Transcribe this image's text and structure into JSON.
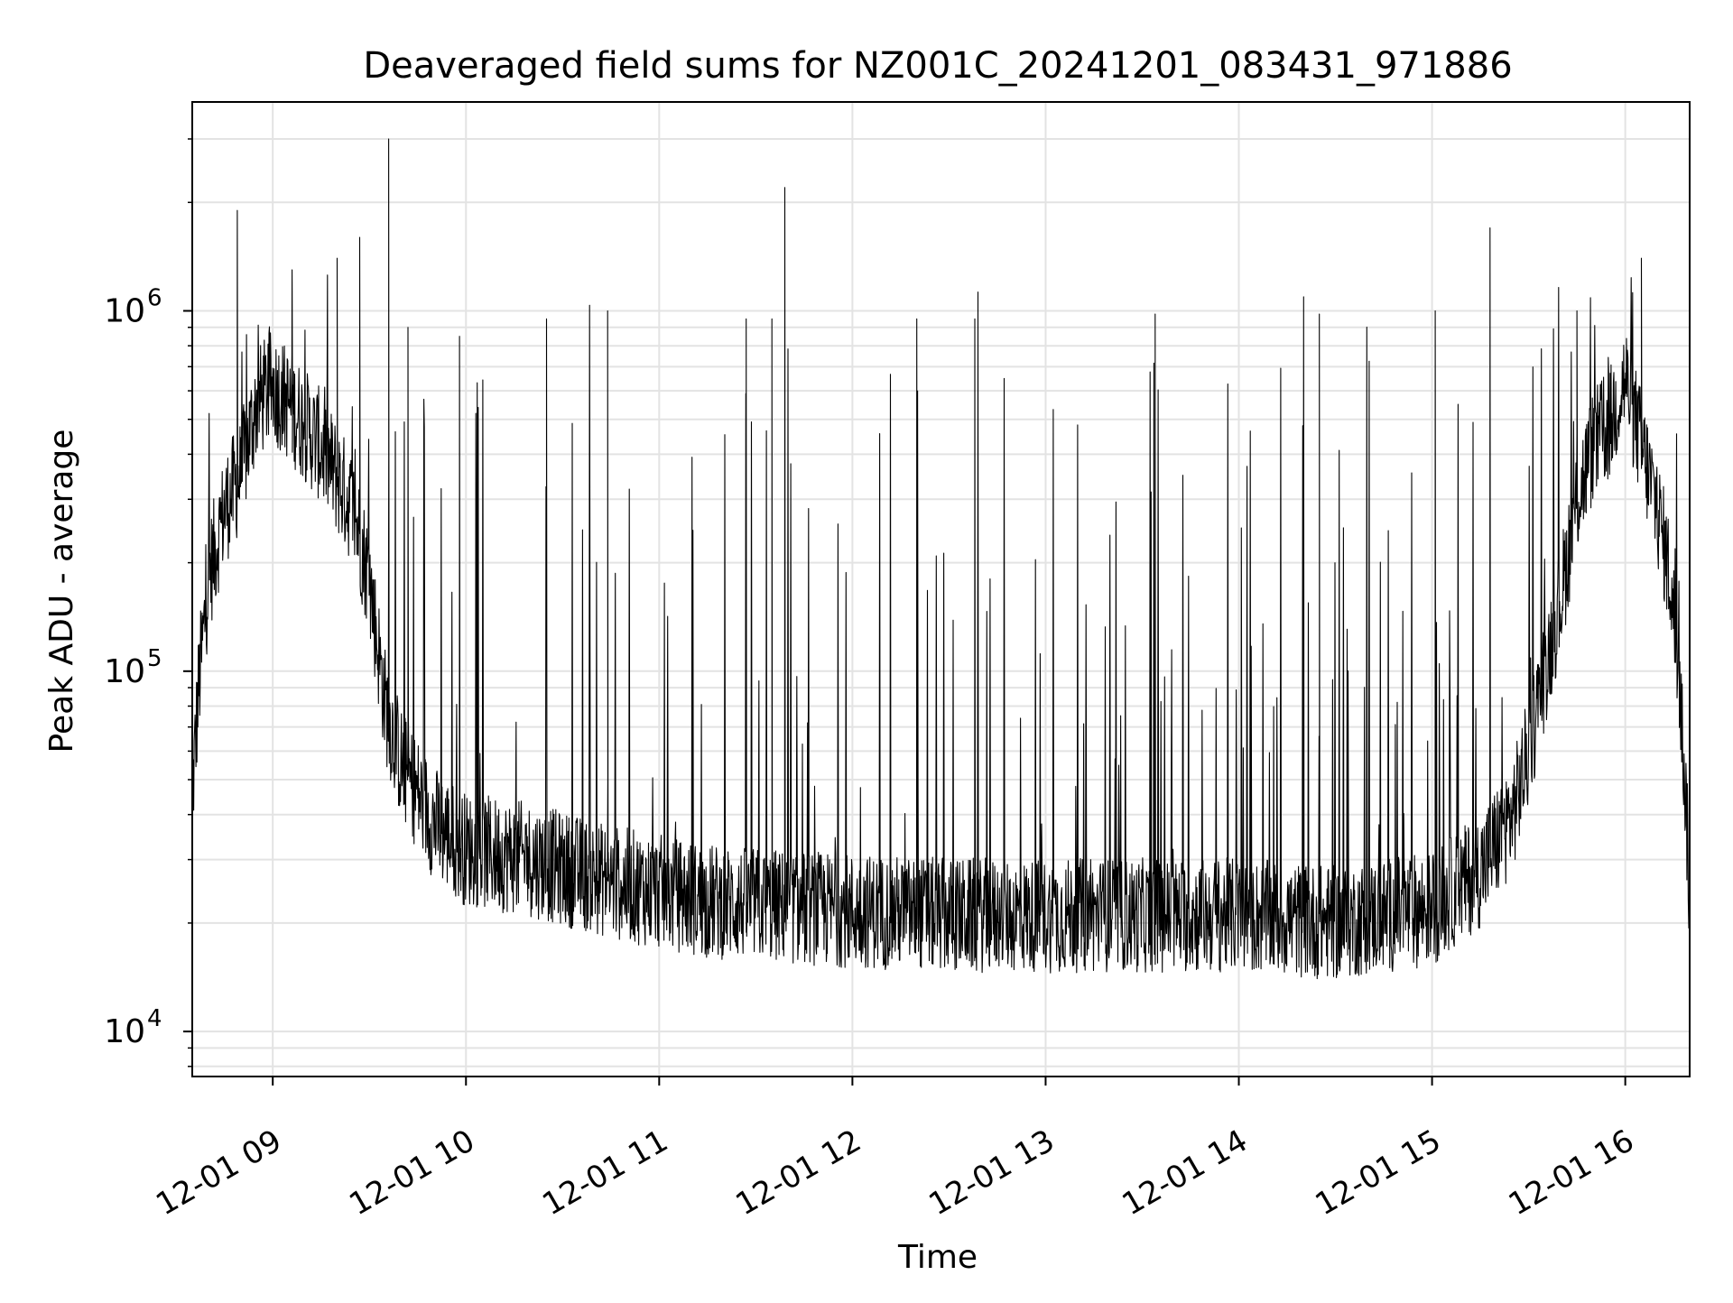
{
  "chart_data": {
    "type": "line",
    "title": "Deaveraged field sums for NZ001C_20241201_083431_971886",
    "xlabel": "Time",
    "ylabel": "Peak ADU - average",
    "x_range": [
      "2024-12-01T08:35:00",
      "2024-12-01T16:20:00"
    ],
    "y_range": [
      7500,
      3800000
    ],
    "y_scale": "log",
    "grid": true,
    "legend": "none",
    "line_color": "#000000",
    "x_ticks": [
      {
        "label": "12-01 09",
        "time": "2024-12-01T09:00:00"
      },
      {
        "label": "12-01 10",
        "time": "2024-12-01T10:00:00"
      },
      {
        "label": "12-01 11",
        "time": "2024-12-01T11:00:00"
      },
      {
        "label": "12-01 12",
        "time": "2024-12-01T12:00:00"
      },
      {
        "label": "12-01 13",
        "time": "2024-12-01T13:00:00"
      },
      {
        "label": "12-01 14",
        "time": "2024-12-01T14:00:00"
      },
      {
        "label": "12-01 15",
        "time": "2024-12-01T15:00:00"
      },
      {
        "label": "12-01 16",
        "time": "2024-12-01T16:00:00"
      }
    ],
    "y_ticks": [
      {
        "base": "10",
        "exp": "4",
        "value": 10000
      },
      {
        "base": "10",
        "exp": "5",
        "value": 100000
      },
      {
        "base": "10",
        "exp": "6",
        "value": 1000000
      }
    ],
    "series": [
      {
        "baseline": [
          {
            "x": "2024-12-01T08:35:00",
            "y": 45000
          },
          {
            "x": "2024-12-01T08:37:00",
            "y": 90000
          },
          {
            "x": "2024-12-01T08:40:00",
            "y": 180000
          },
          {
            "x": "2024-12-01T08:45:00",
            "y": 280000
          },
          {
            "x": "2024-12-01T08:50:00",
            "y": 350000
          },
          {
            "x": "2024-12-01T08:55:00",
            "y": 550000
          },
          {
            "x": "2024-12-01T09:00:00",
            "y": 620000
          },
          {
            "x": "2024-12-01T09:05:00",
            "y": 550000
          },
          {
            "x": "2024-12-01T09:15:00",
            "y": 420000
          },
          {
            "x": "2024-12-01T09:25:00",
            "y": 280000
          },
          {
            "x": "2024-12-01T09:30:00",
            "y": 180000
          },
          {
            "x": "2024-12-01T09:35:00",
            "y": 80000
          },
          {
            "x": "2024-12-01T09:40:00",
            "y": 55000
          },
          {
            "x": "2024-12-01T09:50:00",
            "y": 38000
          },
          {
            "x": "2024-12-01T10:00:00",
            "y": 32000
          },
          {
            "x": "2024-12-01T10:20:00",
            "y": 30000
          },
          {
            "x": "2024-12-01T10:45:00",
            "y": 26000
          },
          {
            "x": "2024-12-01T11:15:00",
            "y": 23000
          },
          {
            "x": "2024-12-01T11:45:00",
            "y": 22000
          },
          {
            "x": "2024-12-01T12:30:00",
            "y": 21000
          },
          {
            "x": "2024-12-01T13:15:00",
            "y": 21000
          },
          {
            "x": "2024-12-01T14:00:00",
            "y": 21000
          },
          {
            "x": "2024-12-01T14:30:00",
            "y": 20000
          },
          {
            "x": "2024-12-01T15:00:00",
            "y": 22000
          },
          {
            "x": "2024-12-01T15:15:00",
            "y": 28000
          },
          {
            "x": "2024-12-01T15:25:00",
            "y": 40000
          },
          {
            "x": "2024-12-01T15:30:00",
            "y": 60000
          },
          {
            "x": "2024-12-01T15:35:00",
            "y": 100000
          },
          {
            "x": "2024-12-01T15:40:00",
            "y": 160000
          },
          {
            "x": "2024-12-01T15:45:00",
            "y": 300000
          },
          {
            "x": "2024-12-01T15:50:00",
            "y": 420000
          },
          {
            "x": "2024-12-01T15:55:00",
            "y": 480000
          },
          {
            "x": "2024-12-01T16:00:00",
            "y": 650000
          },
          {
            "x": "2024-12-01T16:05:00",
            "y": 420000
          },
          {
            "x": "2024-12-01T16:10:00",
            "y": 280000
          },
          {
            "x": "2024-12-01T16:14:00",
            "y": 180000
          },
          {
            "x": "2024-12-01T16:17:00",
            "y": 90000
          },
          {
            "x": "2024-12-01T16:19:00",
            "y": 40000
          },
          {
            "x": "2024-12-01T16:20:00",
            "y": 22000
          }
        ],
        "spikes": [
          {
            "x": "2024-12-01T08:49:00",
            "y": 1900000
          },
          {
            "x": "2024-12-01T09:06:00",
            "y": 1300000
          },
          {
            "x": "2024-12-01T09:20:00",
            "y": 1400000
          },
          {
            "x": "2024-12-01T09:27:00",
            "y": 1600000
          },
          {
            "x": "2024-12-01T09:36:00",
            "y": 3000000
          },
          {
            "x": "2024-12-01T09:42:00",
            "y": 900000
          },
          {
            "x": "2024-12-01T09:58:00",
            "y": 850000
          },
          {
            "x": "2024-12-01T10:25:00",
            "y": 950000
          },
          {
            "x": "2024-12-01T10:44:00",
            "y": 1000000
          },
          {
            "x": "2024-12-01T11:27:00",
            "y": 950000
          },
          {
            "x": "2024-12-01T11:35:00",
            "y": 950000
          },
          {
            "x": "2024-12-01T11:39:00",
            "y": 2200000
          },
          {
            "x": "2024-12-01T12:20:00",
            "y": 950000
          },
          {
            "x": "2024-12-01T12:38:00",
            "y": 950000
          },
          {
            "x": "2024-12-01T13:34:00",
            "y": 980000
          },
          {
            "x": "2024-12-01T14:25:00",
            "y": 980000
          },
          {
            "x": "2024-12-01T15:01:00",
            "y": 1000000
          },
          {
            "x": "2024-12-01T15:18:00",
            "y": 1700000
          },
          {
            "x": "2024-12-01T15:45:00",
            "y": 1000000
          },
          {
            "x": "2024-12-01T16:05:00",
            "y": 1400000
          }
        ]
      }
    ]
  }
}
